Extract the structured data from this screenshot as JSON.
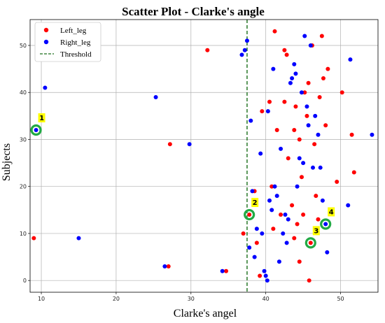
{
  "chart_data": {
    "type": "scatter",
    "title": "Scatter Plot - Clarke's angle",
    "xlabel": "Clarke's angel",
    "ylabel": "Subjects",
    "xlim": [
      8.5,
      55
    ],
    "ylim": [
      -2.5,
      55.5
    ],
    "xticks": [
      "10",
      "20",
      "30",
      "40",
      "50"
    ],
    "yticks": [
      "0",
      "10",
      "20",
      "30",
      "40",
      "50"
    ],
    "grid": true,
    "legend_position": "top-left",
    "threshold": {
      "name": "Threshold",
      "x": 37.5,
      "color": "#1a6e1a",
      "style": "dashed"
    },
    "series": [
      {
        "name": "Left_leg",
        "color": "#ff0000",
        "points": [
          [
            9,
            9
          ],
          [
            27,
            3
          ],
          [
            27.2,
            29
          ],
          [
            32.2,
            49
          ],
          [
            34.7,
            2
          ],
          [
            37,
            10
          ],
          [
            37.8,
            14
          ],
          [
            38.5,
            19
          ],
          [
            39.5,
            36
          ],
          [
            40.5,
            38
          ],
          [
            40.8,
            20
          ],
          [
            41,
            11
          ],
          [
            41.2,
            53
          ],
          [
            41.5,
            32
          ],
          [
            42,
            14
          ],
          [
            42.5,
            38
          ],
          [
            42.8,
            48
          ],
          [
            43,
            26
          ],
          [
            43.5,
            16
          ],
          [
            43.8,
            9
          ],
          [
            44,
            37
          ],
          [
            44.2,
            12
          ],
          [
            44.5,
            4
          ],
          [
            44.8,
            22
          ],
          [
            45,
            14
          ],
          [
            45.2,
            40
          ],
          [
            45.5,
            35
          ],
          [
            45.7,
            42
          ],
          [
            46,
            8
          ],
          [
            46.2,
            50
          ],
          [
            46.5,
            29
          ],
          [
            46.7,
            18
          ],
          [
            47,
            13
          ],
          [
            47.2,
            39
          ],
          [
            47.5,
            52
          ],
          [
            47.7,
            43
          ],
          [
            48,
            33
          ],
          [
            48.3,
            45
          ],
          [
            49.5,
            21
          ],
          [
            50.2,
            40
          ],
          [
            51.5,
            31
          ],
          [
            51.8,
            23
          ],
          [
            42.5,
            49
          ],
          [
            39.2,
            1
          ],
          [
            43.8,
            32
          ],
          [
            38.8,
            8
          ],
          [
            44.5,
            30
          ],
          [
            45.8,
            0
          ]
        ]
      },
      {
        "name": "Right_leg",
        "color": "#0000ff",
        "points": [
          [
            9.3,
            32
          ],
          [
            10.5,
            41
          ],
          [
            15,
            9
          ],
          [
            25.3,
            39
          ],
          [
            26.5,
            3
          ],
          [
            29.8,
            29
          ],
          [
            34.2,
            2
          ],
          [
            36.8,
            48
          ],
          [
            37.2,
            49
          ],
          [
            37.5,
            51
          ],
          [
            37.8,
            7
          ],
          [
            38,
            34
          ],
          [
            38.2,
            19
          ],
          [
            38.5,
            5
          ],
          [
            38.8,
            11
          ],
          [
            39.3,
            27
          ],
          [
            39.5,
            10
          ],
          [
            39.8,
            2
          ],
          [
            40,
            1
          ],
          [
            40.3,
            36
          ],
          [
            40.5,
            17
          ],
          [
            40.8,
            15
          ],
          [
            41,
            45
          ],
          [
            41.2,
            20
          ],
          [
            41.5,
            18
          ],
          [
            41.8,
            4
          ],
          [
            42,
            28
          ],
          [
            42.3,
            10
          ],
          [
            42.6,
            14
          ],
          [
            43,
            13
          ],
          [
            43.3,
            42
          ],
          [
            43.5,
            43
          ],
          [
            43.8,
            46
          ],
          [
            44,
            44
          ],
          [
            44.2,
            20
          ],
          [
            44.5,
            26
          ],
          [
            44.8,
            40
          ],
          [
            45,
            25
          ],
          [
            45.2,
            52
          ],
          [
            45.5,
            37
          ],
          [
            45.7,
            33
          ],
          [
            46,
            50
          ],
          [
            46.3,
            24
          ],
          [
            46.6,
            35
          ],
          [
            47,
            31
          ],
          [
            47.3,
            24
          ],
          [
            47.6,
            17
          ],
          [
            48,
            12
          ],
          [
            48.2,
            6
          ],
          [
            51,
            16
          ],
          [
            51.3,
            47
          ],
          [
            54.2,
            31
          ],
          [
            40.2,
            0
          ],
          [
            42.8,
            8
          ]
        ]
      }
    ],
    "annotations": [
      {
        "label": "1",
        "x": 9.3,
        "y": 32,
        "ring_color": "#22aa44",
        "badge_color": "#ffff00"
      },
      {
        "label": "2",
        "x": 37.8,
        "y": 14,
        "ring_color": "#22aa44",
        "badge_color": "#ffff00"
      },
      {
        "label": "3",
        "x": 46,
        "y": 8,
        "ring_color": "#22aa44",
        "badge_color": "#ffff00"
      },
      {
        "label": "4",
        "x": 48,
        "y": 12,
        "ring_color": "#22aa44",
        "badge_color": "#ffff00"
      }
    ]
  }
}
